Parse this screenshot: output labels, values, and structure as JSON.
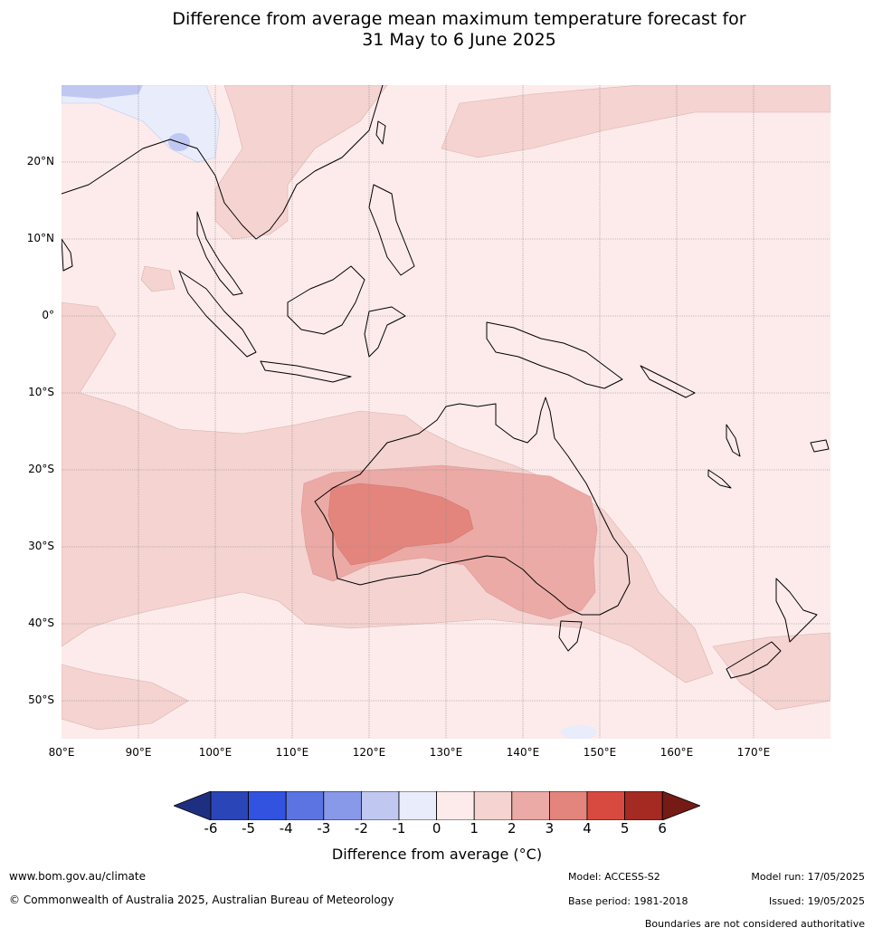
{
  "title": {
    "line1": "Difference from average mean maximum temperature forecast for",
    "line2": "31 May to 6 June 2025"
  },
  "map": {
    "latitude_labels": [
      "20°N",
      "10°N",
      "0°",
      "10°S",
      "20°S",
      "30°S",
      "40°S",
      "50°S"
    ],
    "longitude_labels": [
      "80°E",
      "90°E",
      "100°E",
      "110°E",
      "120°E",
      "130°E",
      "140°E",
      "150°E",
      "160°E",
      "170°E"
    ]
  },
  "colorbar": {
    "ticks": [
      "-6",
      "-5",
      "-4",
      "-3",
      "-2",
      "-1",
      "0",
      "1",
      "2",
      "3",
      "4",
      "5",
      "6"
    ],
    "colors": [
      "#1f2f80",
      "#2a45b8",
      "#3153e0",
      "#5b74e2",
      "#8799e8",
      "#c0c8f2",
      "#e8ecfb",
      "#fcebea",
      "#f4d3d1",
      "#ebaaa6",
      "#e4857d",
      "#d84a40",
      "#a52a22",
      "#741b16"
    ],
    "label": "Difference from average (°C)"
  },
  "footer": {
    "website": "www.bom.gov.au/climate",
    "copyright": "© Commonwealth of Australia 2025, Australian Bureau of Meteorology",
    "model": "Model: ACCESS-S2",
    "base_period": "Base period: 1981-2018",
    "model_run": "Model run: 17/05/2025",
    "issued": "Issued: 19/05/2025",
    "disclaimer": "Boundaries are not considered authoritative"
  }
}
